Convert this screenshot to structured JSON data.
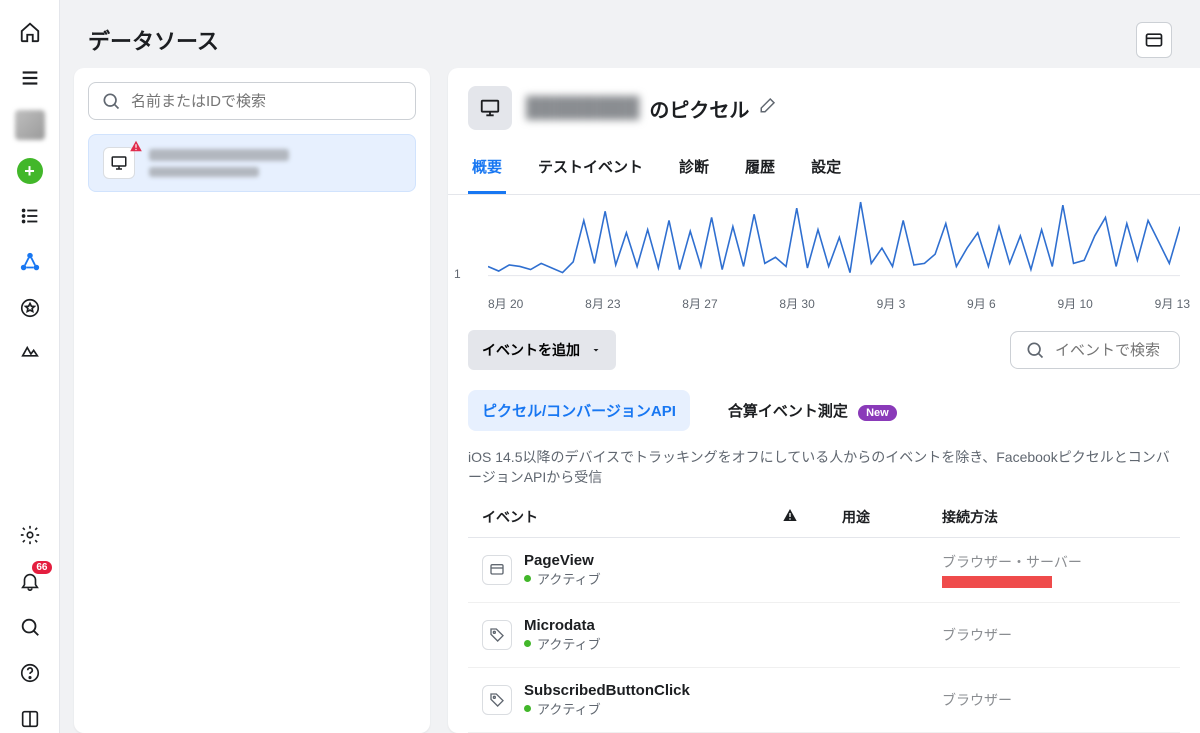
{
  "colors": {
    "accent": "#1877f2",
    "green": "#42b72a",
    "badge_red": "#e41e3f",
    "pill_purple": "#8a3ab9",
    "line": "#2f6fd0",
    "grid": "#e4e6eb",
    "text_muted": "#606770",
    "bg": "#f1f2f4",
    "red_strip": "#ef4b4b"
  },
  "rail": {
    "badge_count": "66"
  },
  "page": {
    "title": "データソース"
  },
  "search": {
    "placeholder": "名前またはIDで検索"
  },
  "pixel": {
    "title_suffix": "のピクセル"
  },
  "tabs": [
    "概要",
    "テストイベント",
    "診断",
    "履歴",
    "設定"
  ],
  "chart": {
    "type": "line",
    "ylim": [
      0,
      6
    ],
    "ytick": [
      "1"
    ],
    "xticks": [
      "8月 20",
      "8月 23",
      "8月 27",
      "8月 30",
      "9月 3",
      "9月 6",
      "9月 10",
      "9月 13"
    ],
    "line_color": "#2f6fd0",
    "line_width": 1.6,
    "background": "#ffffff",
    "points": [
      1.6,
      1.3,
      1.7,
      1.6,
      1.4,
      1.8,
      1.5,
      1.2,
      1.9,
      4.6,
      1.8,
      5.2,
      1.7,
      3.8,
      1.6,
      4.0,
      1.5,
      4.6,
      1.4,
      3.9,
      1.6,
      4.8,
      1.4,
      4.2,
      1.6,
      5.0,
      1.8,
      2.2,
      1.6,
      5.4,
      1.5,
      4.0,
      1.6,
      3.5,
      1.2,
      5.8,
      1.8,
      2.8,
      1.6,
      4.6,
      1.7,
      1.8,
      2.4,
      4.4,
      1.6,
      2.8,
      3.8,
      1.6,
      4.2,
      1.8,
      3.6,
      1.4,
      4.0,
      1.6,
      5.6,
      1.8,
      2.0,
      3.6,
      4.8,
      1.6,
      4.4,
      2.0,
      4.6,
      3.2,
      1.8,
      4.2
    ]
  },
  "actions": {
    "add_event": "イベントを追加",
    "event_search_placeholder": "イベントで検索"
  },
  "subtabs": {
    "api": "ピクセル/コンバージョンAPI",
    "agg": "合算イベント測定",
    "new": "New"
  },
  "description": "iOS 14.5以降のデバイスでトラッキングをオフにしている人からのイベントを除き、FacebookピクセルとコンバージョンAPIから受信",
  "columns": {
    "event": "イベント",
    "use": "用途",
    "conn": "接続方法"
  },
  "status_active": "アクティブ",
  "events": [
    {
      "name": "PageView",
      "icon": "browser",
      "conn": "ブラウザー・サーバー",
      "red_strip": true
    },
    {
      "name": "Microdata",
      "icon": "tag",
      "conn": "ブラウザー",
      "red_strip": false
    },
    {
      "name": "SubscribedButtonClick",
      "icon": "tag",
      "conn": "ブラウザー",
      "red_strip": false
    }
  ]
}
